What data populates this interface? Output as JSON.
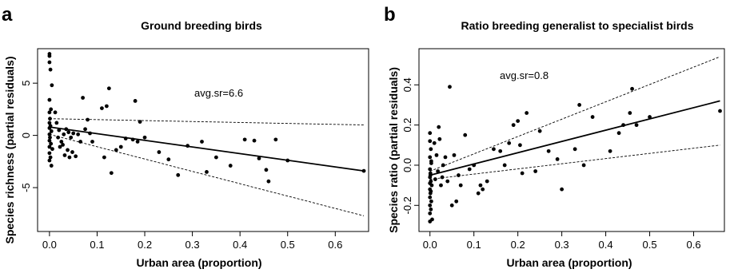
{
  "chart_data": [
    {
      "type": "scatter",
      "panel_label": "a",
      "title": "Ground breeding birds",
      "xlabel": "Urban area (proportion)",
      "ylabel": "Species richness (partial residuals)",
      "xlim": [
        -0.025,
        0.67
      ],
      "ylim": [
        -9.2,
        8.3
      ],
      "x_ticks": [
        0.0,
        0.1,
        0.2,
        0.3,
        0.4,
        0.5,
        0.6
      ],
      "x_tick_labels": [
        "0.0",
        "0.1",
        "0.2",
        "0.3",
        "0.4",
        "0.5",
        "0.6"
      ],
      "y_ticks": [
        -5,
        0,
        5
      ],
      "y_tick_labels": [
        "-5",
        "0",
        "5"
      ],
      "annotation": "avg.sr=6.6",
      "points": {
        "x": [
          0.0,
          0.0,
          0.0,
          0.002,
          0.005,
          0.0,
          0.003,
          0.0,
          0.001,
          0.0,
          0.002,
          0.0,
          0.004,
          0.0,
          0.001,
          0.0,
          0.003,
          0.0,
          0.006,
          0.0,
          0.002,
          0.0,
          0.004,
          0.012,
          0.015,
          0.02,
          0.018,
          0.025,
          0.022,
          0.03,
          0.028,
          0.035,
          0.032,
          0.04,
          0.038,
          0.045,
          0.042,
          0.05,
          0.048,
          0.055,
          0.06,
          0.065,
          0.07,
          0.075,
          0.08,
          0.085,
          0.09,
          0.11,
          0.115,
          0.12,
          0.125,
          0.13,
          0.14,
          0.15,
          0.16,
          0.175,
          0.18,
          0.185,
          0.19,
          0.2,
          0.23,
          0.25,
          0.27,
          0.29,
          0.32,
          0.33,
          0.35,
          0.38,
          0.41,
          0.43,
          0.44,
          0.455,
          0.46,
          0.475,
          0.5,
          0.66
        ],
        "y": [
          7.8,
          7.6,
          7.0,
          6.3,
          4.8,
          3.4,
          2.5,
          2.2,
          1.6,
          1.2,
          0.9,
          0.7,
          0.4,
          0.1,
          -0.2,
          -0.5,
          -0.8,
          -1.1,
          -1.3,
          -1.7,
          -2.1,
          -2.4,
          -2.9,
          2.2,
          1.2,
          0.5,
          -0.2,
          -0.6,
          -1.1,
          0.1,
          -0.9,
          0.6,
          -1.9,
          0.3,
          -1.4,
          -0.2,
          -2.1,
          0.2,
          -1.6,
          -2.0,
          0.1,
          -0.6,
          3.6,
          0.6,
          1.5,
          0.2,
          -0.6,
          2.6,
          -2.1,
          2.8,
          4.5,
          -3.6,
          -1.4,
          -1.1,
          -0.3,
          -0.4,
          3.3,
          -0.6,
          1.3,
          -0.2,
          -1.6,
          -2.3,
          -3.8,
          -1.0,
          -0.6,
          -3.5,
          -2.1,
          -2.9,
          -0.4,
          -0.5,
          -2.2,
          -3.3,
          -4.4,
          -0.4,
          -2.4,
          -3.4
        ]
      },
      "fit": {
        "x": [
          0.0,
          0.66
        ],
        "y": [
          0.8,
          -3.4
        ]
      },
      "ci_upper": {
        "x": [
          0.0,
          0.66
        ],
        "y": [
          1.6,
          1.0
        ]
      },
      "ci_lower": {
        "x": [
          0.0,
          0.66
        ],
        "y": [
          0.1,
          -7.7
        ]
      }
    },
    {
      "type": "scatter",
      "panel_label": "b",
      "title": "Ratio breeding generalist to specialist birds",
      "xlabel": "Urban area (proportion)",
      "ylabel": "Species ratio (partial residuals)",
      "xlim": [
        -0.025,
        0.67
      ],
      "ylim": [
        -0.33,
        0.58
      ],
      "x_ticks": [
        0.0,
        0.1,
        0.2,
        0.3,
        0.4,
        0.5,
        0.6
      ],
      "x_tick_labels": [
        "0.0",
        "0.1",
        "0.2",
        "0.3",
        "0.4",
        "0.5",
        "0.6"
      ],
      "y_ticks": [
        -0.2,
        0.0,
        0.2,
        0.4
      ],
      "y_tick_labels": [
        "-0.2",
        "0.0",
        "0.2",
        "0.4"
      ],
      "annotation": "avg.sr=0.8",
      "points": {
        "x": [
          0.0,
          0.0,
          0.002,
          0.0,
          0.003,
          0.0,
          0.001,
          0.0,
          0.002,
          0.004,
          0.0,
          0.001,
          0.0,
          0.003,
          0.0,
          0.002,
          0.0,
          0.005,
          0.0,
          0.001,
          0.003,
          0.0,
          0.002,
          0.01,
          0.012,
          0.015,
          0.02,
          0.018,
          0.022,
          0.025,
          0.03,
          0.028,
          0.035,
          0.04,
          0.045,
          0.05,
          0.055,
          0.06,
          0.065,
          0.07,
          0.08,
          0.09,
          0.1,
          0.11,
          0.115,
          0.12,
          0.13,
          0.145,
          0.16,
          0.17,
          0.18,
          0.19,
          0.2,
          0.205,
          0.21,
          0.22,
          0.24,
          0.25,
          0.27,
          0.29,
          0.3,
          0.33,
          0.34,
          0.35,
          0.37,
          0.41,
          0.43,
          0.44,
          0.455,
          0.46,
          0.47,
          0.5,
          0.66
        ],
        "y": [
          0.16,
          0.12,
          0.08,
          0.04,
          0.01,
          -0.02,
          -0.04,
          -0.06,
          -0.08,
          -0.1,
          -0.12,
          -0.14,
          -0.16,
          -0.18,
          -0.2,
          -0.22,
          -0.24,
          -0.27,
          -0.28,
          -0.05,
          0.02,
          -0.09,
          -0.13,
          0.11,
          -0.07,
          0.05,
          0.19,
          -0.03,
          0.13,
          -0.1,
          0.0,
          -0.06,
          0.04,
          -0.08,
          0.39,
          -0.2,
          0.05,
          -0.18,
          -0.05,
          -0.1,
          0.15,
          -0.02,
          0.0,
          -0.14,
          -0.1,
          -0.12,
          -0.08,
          0.08,
          0.07,
          0.0,
          0.11,
          0.2,
          0.22,
          0.1,
          -0.04,
          0.26,
          -0.03,
          0.17,
          0.07,
          0.03,
          -0.12,
          0.08,
          0.3,
          0.0,
          0.24,
          0.07,
          0.16,
          0.2,
          0.26,
          0.38,
          0.2,
          0.24,
          0.27
        ]
      },
      "fit": {
        "x": [
          0.0,
          0.66
        ],
        "y": [
          -0.05,
          0.32
        ]
      },
      "ci_upper": {
        "x": [
          0.0,
          0.66
        ],
        "y": [
          -0.03,
          0.54
        ]
      },
      "ci_lower": {
        "x": [
          0.0,
          0.66
        ],
        "y": [
          -0.07,
          0.1
        ]
      }
    }
  ]
}
